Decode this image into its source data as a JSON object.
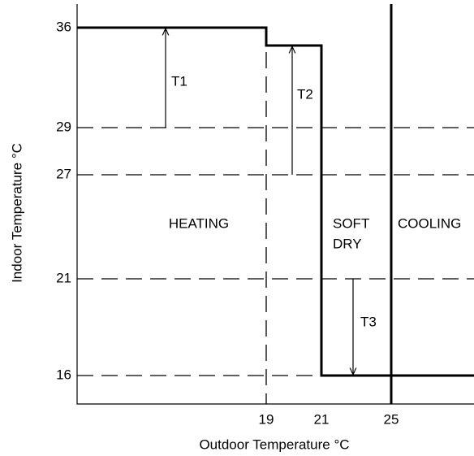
{
  "y_axis": {
    "label": "Indoor Temperature °C",
    "ticks": [
      "36",
      "29",
      "27",
      "21",
      "16"
    ]
  },
  "x_axis": {
    "label": "Outdoor Temperature °C",
    "ticks": [
      "19",
      "21",
      "25"
    ]
  },
  "regions": [
    "HEATING",
    "SOFT",
    "DRY",
    "COOLING"
  ],
  "arrows": [
    "T1",
    "T2",
    "T3"
  ]
}
